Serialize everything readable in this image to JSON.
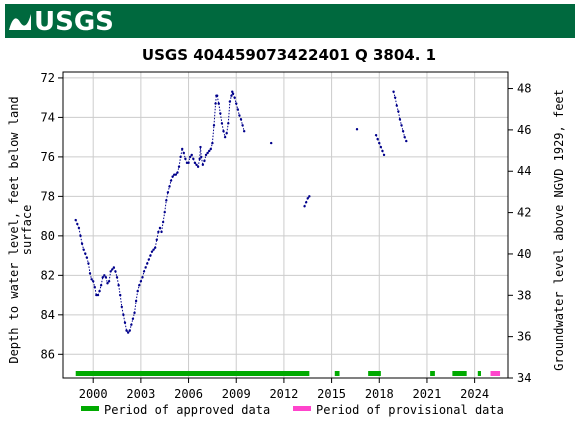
{
  "header": {
    "logo_text": "USGS",
    "bar_color": "#00693e"
  },
  "chart_data": {
    "type": "scatter",
    "title": "USGS 404459073422401 Q  3804. 1",
    "ylabel_left_line1": "Depth to water level, feet below land",
    "ylabel_left_line2": "surface",
    "ylabel_right": "Groundwater level above NGVD 1929, feet",
    "xlabel": "",
    "x_ticks": [
      "2000",
      "2003",
      "2006",
      "2009",
      "2012",
      "2015",
      "2018",
      "2021",
      "2024"
    ],
    "x_tick_values": [
      2000,
      2003,
      2006,
      2009,
      2012,
      2015,
      2018,
      2021,
      2024
    ],
    "y_left_ticks": [
      72,
      74,
      76,
      78,
      80,
      82,
      84,
      86
    ],
    "y_right_ticks": [
      48,
      46,
      44,
      42,
      40,
      38,
      36,
      34
    ],
    "xlim": [
      1998.1,
      2026.1
    ],
    "ylim_left": [
      87.2,
      71.7
    ],
    "ylim_right": [
      34.0,
      48.8
    ],
    "grid": true,
    "series": [
      {
        "name": "",
        "color": "#00008b",
        "points": [
          [
            1998.9,
            79.2
          ],
          [
            1999.0,
            79.4
          ],
          [
            1999.1,
            79.6
          ],
          [
            1999.2,
            80.0
          ],
          [
            1999.3,
            80.4
          ],
          [
            1999.4,
            80.7
          ],
          [
            1999.5,
            80.9
          ],
          [
            1999.6,
            81.1
          ],
          [
            1999.7,
            81.4
          ],
          [
            1999.8,
            81.9
          ],
          [
            1999.9,
            82.2
          ],
          [
            2000.0,
            82.3
          ],
          [
            2000.1,
            82.6
          ],
          [
            2000.2,
            83.0
          ],
          [
            2000.3,
            83.0
          ],
          [
            2000.4,
            82.8
          ],
          [
            2000.5,
            82.5
          ],
          [
            2000.6,
            82.1
          ],
          [
            2000.7,
            82.0
          ],
          [
            2000.8,
            82.1
          ],
          [
            2000.9,
            82.4
          ],
          [
            2001.0,
            82.3
          ],
          [
            2001.1,
            81.8
          ],
          [
            2001.2,
            81.7
          ],
          [
            2001.3,
            81.6
          ],
          [
            2001.4,
            81.8
          ],
          [
            2001.5,
            82.1
          ],
          [
            2001.6,
            82.5
          ],
          [
            2001.7,
            83.0
          ],
          [
            2001.8,
            83.6
          ],
          [
            2001.9,
            84.0
          ],
          [
            2002.0,
            84.4
          ],
          [
            2002.1,
            84.8
          ],
          [
            2002.2,
            84.9
          ],
          [
            2002.3,
            84.8
          ],
          [
            2002.4,
            84.5
          ],
          [
            2002.5,
            84.2
          ],
          [
            2002.6,
            83.9
          ],
          [
            2002.7,
            83.3
          ],
          [
            2002.8,
            82.8
          ],
          [
            2002.9,
            82.5
          ],
          [
            2003.0,
            82.3
          ],
          [
            2003.1,
            82.1
          ],
          [
            2003.2,
            81.8
          ],
          [
            2003.3,
            81.6
          ],
          [
            2003.4,
            81.4
          ],
          [
            2003.5,
            81.2
          ],
          [
            2003.6,
            81.0
          ],
          [
            2003.7,
            80.8
          ],
          [
            2003.8,
            80.7
          ],
          [
            2003.9,
            80.6
          ],
          [
            2004.0,
            80.2
          ],
          [
            2004.1,
            79.8
          ],
          [
            2004.2,
            79.6
          ],
          [
            2004.3,
            79.8
          ],
          [
            2004.4,
            79.3
          ],
          [
            2004.5,
            78.8
          ],
          [
            2004.6,
            78.2
          ],
          [
            2004.7,
            77.8
          ],
          [
            2004.8,
            77.5
          ],
          [
            2004.9,
            77.2
          ],
          [
            2005.0,
            77.0
          ],
          [
            2005.1,
            76.9
          ],
          [
            2005.2,
            76.9
          ],
          [
            2005.3,
            76.8
          ],
          [
            2005.4,
            76.5
          ],
          [
            2005.5,
            76.0
          ],
          [
            2005.6,
            75.6
          ],
          [
            2005.7,
            75.8
          ],
          [
            2005.8,
            76.1
          ],
          [
            2005.9,
            76.3
          ],
          [
            2006.0,
            76.3
          ],
          [
            2006.1,
            76.0
          ],
          [
            2006.2,
            75.9
          ],
          [
            2006.3,
            76.1
          ],
          [
            2006.4,
            76.3
          ],
          [
            2006.5,
            76.4
          ],
          [
            2006.6,
            76.5
          ],
          [
            2006.7,
            76.1
          ],
          [
            2006.75,
            75.5
          ],
          [
            2006.8,
            76.0
          ],
          [
            2006.9,
            76.4
          ],
          [
            2007.0,
            76.2
          ],
          [
            2007.1,
            75.9
          ],
          [
            2007.2,
            75.8
          ],
          [
            2007.3,
            75.7
          ],
          [
            2007.4,
            75.6
          ],
          [
            2007.5,
            75.3
          ],
          [
            2007.6,
            74.4
          ],
          [
            2007.7,
            73.3
          ],
          [
            2007.75,
            72.9
          ],
          [
            2007.8,
            72.9
          ],
          [
            2007.9,
            73.3
          ],
          [
            2008.0,
            73.8
          ],
          [
            2008.1,
            74.3
          ],
          [
            2008.2,
            74.7
          ],
          [
            2008.3,
            75.0
          ],
          [
            2008.4,
            74.8
          ],
          [
            2008.5,
            74.3
          ],
          [
            2008.6,
            73.2
          ],
          [
            2008.7,
            72.9
          ],
          [
            2008.75,
            72.7
          ],
          [
            2008.8,
            72.8
          ],
          [
            2008.9,
            73.0
          ],
          [
            2009.0,
            73.3
          ],
          [
            2009.1,
            73.6
          ],
          [
            2009.2,
            73.9
          ],
          [
            2009.3,
            74.1
          ],
          [
            2009.4,
            74.4
          ],
          [
            2009.5,
            74.7
          ],
          [
            2011.2,
            75.3
          ],
          [
            2013.3,
            78.5
          ],
          [
            2013.4,
            78.3
          ],
          [
            2013.5,
            78.1
          ],
          [
            2013.6,
            78.0
          ],
          [
            2016.6,
            74.6
          ],
          [
            2017.8,
            74.9
          ],
          [
            2017.9,
            75.1
          ],
          [
            2018.0,
            75.3
          ],
          [
            2018.1,
            75.5
          ],
          [
            2018.2,
            75.7
          ],
          [
            2018.3,
            75.9
          ],
          [
            2018.9,
            72.7
          ],
          [
            2019.0,
            73.0
          ],
          [
            2019.1,
            73.4
          ],
          [
            2019.2,
            73.7
          ],
          [
            2019.3,
            74.1
          ],
          [
            2019.4,
            74.4
          ],
          [
            2019.5,
            74.7
          ],
          [
            2019.6,
            75.0
          ],
          [
            2019.7,
            75.2
          ]
        ]
      }
    ],
    "legend": [
      {
        "label": "Period of approved data",
        "color": "#00aa00"
      },
      {
        "label": "Period of provisional data",
        "color": "#ff44cc"
      }
    ],
    "legend_position": "bottom",
    "approval_bars": [
      {
        "start": 1998.9,
        "end": 2013.6,
        "status": "approved"
      },
      {
        "start": 2015.2,
        "end": 2015.5,
        "status": "approved"
      },
      {
        "start": 2017.3,
        "end": 2018.1,
        "status": "approved"
      },
      {
        "start": 2021.2,
        "end": 2021.5,
        "status": "approved"
      },
      {
        "start": 2022.6,
        "end": 2023.5,
        "status": "approved"
      },
      {
        "start": 2024.2,
        "end": 2024.4,
        "status": "approved"
      },
      {
        "start": 2025.0,
        "end": 2025.6,
        "status": "provisional"
      }
    ]
  }
}
